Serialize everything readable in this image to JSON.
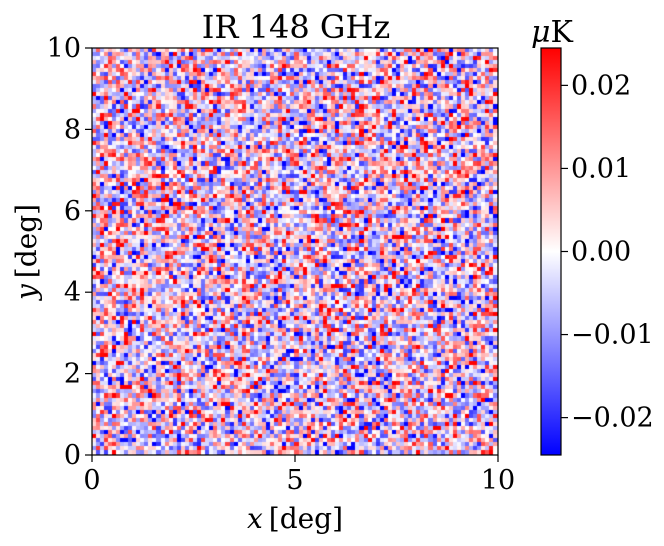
{
  "chart_data": {
    "type": "heatmap",
    "title": "IR 148 GHz",
    "xlabel_var": "x",
    "xlabel_unit": "[deg]",
    "ylabel_var": "y",
    "ylabel_unit": "[deg]",
    "xlim": [
      0,
      10
    ],
    "ylim": [
      0,
      10
    ],
    "xticks": [
      0,
      5,
      10
    ],
    "xtick_labels": [
      "0",
      "5",
      "10"
    ],
    "yticks": [
      0,
      2,
      4,
      6,
      8,
      10
    ],
    "ytick_labels": [
      "0",
      "2",
      "4",
      "6",
      "8",
      "10"
    ],
    "colorbar": {
      "label_var": "μ",
      "label_unit": "K",
      "colormap": "bwr",
      "range": [
        -0.0245,
        0.0245
      ],
      "ticks": [
        0.02,
        0.01,
        0.0,
        -0.01,
        -0.02
      ],
      "tick_labels": [
        "0.02",
        "0.01",
        "0.00",
        "−0.01",
        "−0.02"
      ]
    },
    "field": {
      "description": "random noise map",
      "grid_cells": 100,
      "noise_std": 0.013,
      "seed": 148
    },
    "colors": {
      "low": "#0000ff",
      "mid": "#ffffff",
      "high": "#ff0000"
    }
  }
}
